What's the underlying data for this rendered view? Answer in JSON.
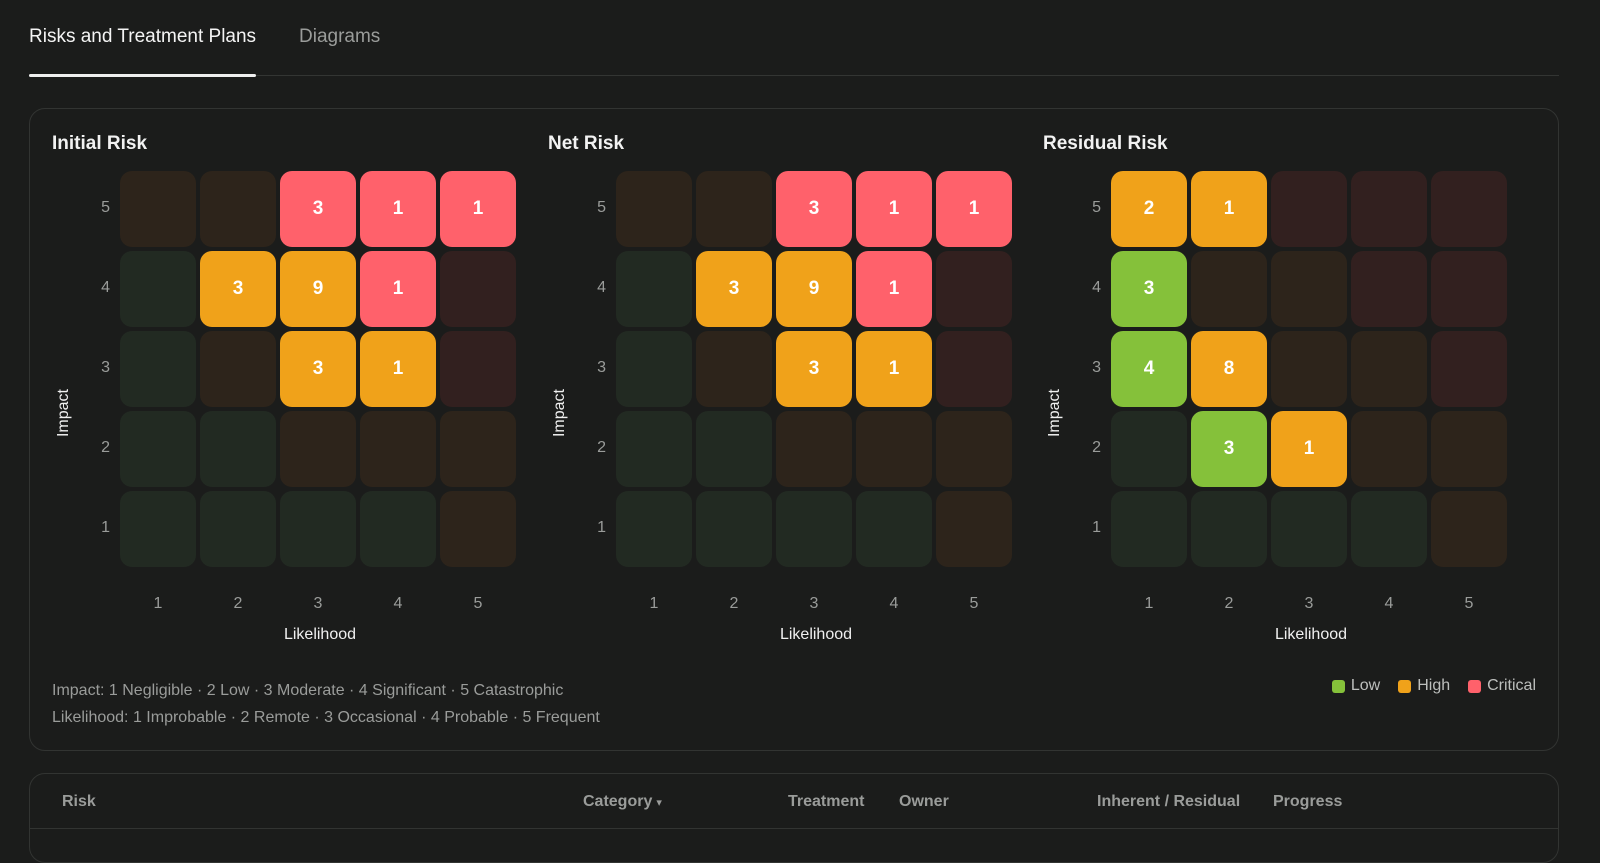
{
  "tabs": [
    {
      "label": "Risks and Treatment Plans",
      "active": true
    },
    {
      "label": "Diagrams",
      "active": false
    }
  ],
  "colors": {
    "low": "#85c13a",
    "high": "#f0a21a",
    "critical": "#ff616b",
    "empty_low": "#222a22",
    "empty_high": "#2d241b",
    "empty_critical": "#32201f"
  },
  "matrices": [
    {
      "title": "Initial Risk",
      "y_label": "Impact",
      "x_label": "Likelihood",
      "y_ticks": [
        "5",
        "4",
        "3",
        "2",
        "1"
      ],
      "x_ticks": [
        "1",
        "2",
        "3",
        "4",
        "5"
      ],
      "rows": [
        [
          {
            "c": "empty_high",
            "v": ""
          },
          {
            "c": "empty_high",
            "v": ""
          },
          {
            "c": "critical",
            "v": "3"
          },
          {
            "c": "critical",
            "v": "1"
          },
          {
            "c": "critical",
            "v": "1"
          }
        ],
        [
          {
            "c": "empty_low",
            "v": ""
          },
          {
            "c": "high",
            "v": "3"
          },
          {
            "c": "high",
            "v": "9"
          },
          {
            "c": "critical",
            "v": "1"
          },
          {
            "c": "empty_critical",
            "v": ""
          }
        ],
        [
          {
            "c": "empty_low",
            "v": ""
          },
          {
            "c": "empty_high",
            "v": ""
          },
          {
            "c": "high",
            "v": "3"
          },
          {
            "c": "high",
            "v": "1"
          },
          {
            "c": "empty_critical",
            "v": ""
          }
        ],
        [
          {
            "c": "empty_low",
            "v": ""
          },
          {
            "c": "empty_low",
            "v": ""
          },
          {
            "c": "empty_high",
            "v": ""
          },
          {
            "c": "empty_high",
            "v": ""
          },
          {
            "c": "empty_high",
            "v": ""
          }
        ],
        [
          {
            "c": "empty_low",
            "v": ""
          },
          {
            "c": "empty_low",
            "v": ""
          },
          {
            "c": "empty_low",
            "v": ""
          },
          {
            "c": "empty_low",
            "v": ""
          },
          {
            "c": "empty_high",
            "v": ""
          }
        ]
      ]
    },
    {
      "title": "Net Risk",
      "y_label": "Impact",
      "x_label": "Likelihood",
      "y_ticks": [
        "5",
        "4",
        "3",
        "2",
        "1"
      ],
      "x_ticks": [
        "1",
        "2",
        "3",
        "4",
        "5"
      ],
      "rows": [
        [
          {
            "c": "empty_high",
            "v": ""
          },
          {
            "c": "empty_high",
            "v": ""
          },
          {
            "c": "critical",
            "v": "3"
          },
          {
            "c": "critical",
            "v": "1"
          },
          {
            "c": "critical",
            "v": "1"
          }
        ],
        [
          {
            "c": "empty_low",
            "v": ""
          },
          {
            "c": "high",
            "v": "3"
          },
          {
            "c": "high",
            "v": "9"
          },
          {
            "c": "critical",
            "v": "1"
          },
          {
            "c": "empty_critical",
            "v": ""
          }
        ],
        [
          {
            "c": "empty_low",
            "v": ""
          },
          {
            "c": "empty_high",
            "v": ""
          },
          {
            "c": "high",
            "v": "3"
          },
          {
            "c": "high",
            "v": "1"
          },
          {
            "c": "empty_critical",
            "v": ""
          }
        ],
        [
          {
            "c": "empty_low",
            "v": ""
          },
          {
            "c": "empty_low",
            "v": ""
          },
          {
            "c": "empty_high",
            "v": ""
          },
          {
            "c": "empty_high",
            "v": ""
          },
          {
            "c": "empty_high",
            "v": ""
          }
        ],
        [
          {
            "c": "empty_low",
            "v": ""
          },
          {
            "c": "empty_low",
            "v": ""
          },
          {
            "c": "empty_low",
            "v": ""
          },
          {
            "c": "empty_low",
            "v": ""
          },
          {
            "c": "empty_high",
            "v": ""
          }
        ]
      ]
    },
    {
      "title": "Residual Risk",
      "y_label": "Impact",
      "x_label": "Likelihood",
      "y_ticks": [
        "5",
        "4",
        "3",
        "2",
        "1"
      ],
      "x_ticks": [
        "1",
        "2",
        "3",
        "4",
        "5"
      ],
      "rows": [
        [
          {
            "c": "high",
            "v": "2"
          },
          {
            "c": "high",
            "v": "1"
          },
          {
            "c": "empty_critical",
            "v": ""
          },
          {
            "c": "empty_critical",
            "v": ""
          },
          {
            "c": "empty_critical",
            "v": ""
          }
        ],
        [
          {
            "c": "low",
            "v": "3"
          },
          {
            "c": "empty_high",
            "v": ""
          },
          {
            "c": "empty_high",
            "v": ""
          },
          {
            "c": "empty_critical",
            "v": ""
          },
          {
            "c": "empty_critical",
            "v": ""
          }
        ],
        [
          {
            "c": "low",
            "v": "4"
          },
          {
            "c": "high",
            "v": "8"
          },
          {
            "c": "empty_high",
            "v": ""
          },
          {
            "c": "empty_high",
            "v": ""
          },
          {
            "c": "empty_critical",
            "v": ""
          }
        ],
        [
          {
            "c": "empty_low",
            "v": ""
          },
          {
            "c": "low",
            "v": "3"
          },
          {
            "c": "high",
            "v": "1"
          },
          {
            "c": "empty_high",
            "v": ""
          },
          {
            "c": "empty_high",
            "v": ""
          }
        ],
        [
          {
            "c": "empty_low",
            "v": ""
          },
          {
            "c": "empty_low",
            "v": ""
          },
          {
            "c": "empty_low",
            "v": ""
          },
          {
            "c": "empty_low",
            "v": ""
          },
          {
            "c": "empty_high",
            "v": ""
          }
        ]
      ]
    }
  ],
  "legend": {
    "impact_line": "Impact: 1 Negligible · 2 Low · 3 Moderate · 4 Significant · 5 Catastrophic",
    "likelihood_line": "Likelihood: 1 Improbable · 2 Remote · 3 Occasional · 4 Probable · 5 Frequent",
    "keys": [
      {
        "label": "Low",
        "color": "#85c13a"
      },
      {
        "label": "High",
        "color": "#f0a21a"
      },
      {
        "label": "Critical",
        "color": "#ff616b"
      }
    ]
  },
  "table": {
    "headers": {
      "risk": "Risk",
      "category": "Category",
      "treatment": "Treatment",
      "owner": "Owner",
      "inherent_residual": "Inherent / Residual",
      "progress": "Progress"
    },
    "category_caret": "▾"
  }
}
